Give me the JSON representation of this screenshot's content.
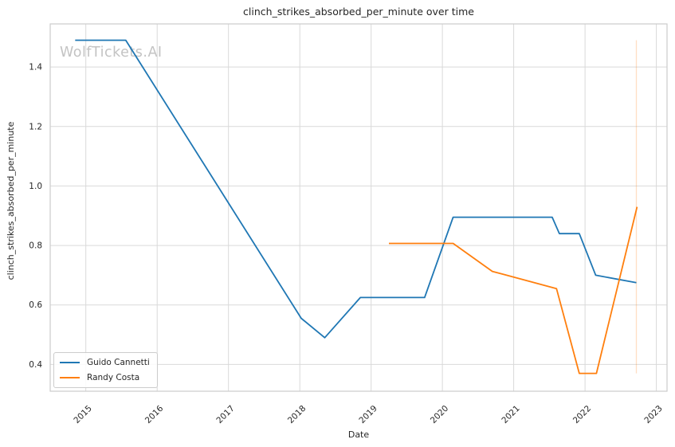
{
  "figure": {
    "title": "clinch_strikes_absorbed_per_minute over time",
    "watermark": "WolfTickets.AI",
    "xlabel": "Date",
    "ylabel": "clinch_strikes_absorbed_per_minute"
  },
  "legend": {
    "items": [
      {
        "label": "Guido Cannetti",
        "color": "#1f77b4"
      },
      {
        "label": "Randy Costa",
        "color": "#ff7f0e"
      }
    ]
  },
  "chart_data": {
    "type": "line",
    "title": "clinch_strikes_absorbed_per_minute over time",
    "xlabel": "Date",
    "ylabel": "clinch_strikes_absorbed_per_minute",
    "xlim": [
      2014.5,
      2023.15
    ],
    "ylim": [
      0.31,
      1.545
    ],
    "xticks": [
      2015,
      2016,
      2017,
      2018,
      2019,
      2020,
      2021,
      2022,
      2023
    ],
    "xtick_labels": [
      "2015",
      "2016",
      "2017",
      "2018",
      "2019",
      "2020",
      "2021",
      "2022",
      "2023"
    ],
    "yticks": [
      0.4,
      0.6,
      0.8,
      1.0,
      1.2,
      1.4
    ],
    "ytick_labels": [
      "0.4",
      "0.6",
      "0.8",
      "1.0",
      "1.2",
      "1.4"
    ],
    "grid": true,
    "legend_position": "lower-left",
    "series": [
      {
        "name": "Guido Cannetti",
        "color": "#1f77b4",
        "points": [
          [
            2014.85,
            1.49
          ],
          [
            2015.56,
            1.49
          ],
          [
            2018.02,
            0.555
          ],
          [
            2018.35,
            0.49
          ],
          [
            2018.85,
            0.625
          ],
          [
            2019.75,
            0.625
          ],
          [
            2020.15,
            0.895
          ],
          [
            2021.54,
            0.895
          ],
          [
            2021.64,
            0.84
          ],
          [
            2021.92,
            0.84
          ],
          [
            2022.15,
            0.7
          ],
          [
            2022.72,
            0.675
          ]
        ]
      },
      {
        "name": "Randy Costa",
        "color": "#ff7f0e",
        "points": [
          [
            2019.25,
            0.807
          ],
          [
            2020.15,
            0.807
          ],
          [
            2020.7,
            0.713
          ],
          [
            2021.6,
            0.655
          ],
          [
            2021.92,
            0.37
          ],
          [
            2022.16,
            0.37
          ],
          [
            2022.73,
            0.93
          ]
        ]
      }
    ],
    "annotations": [
      {
        "type": "vline",
        "x": 2022.72,
        "y1": 0.37,
        "y2": 1.49,
        "color": "#ff7f0e",
        "opacity": 0.25
      }
    ],
    "colors": {
      "grid": "#d9d9d9",
      "spine": "#cccccc",
      "text": "#262626",
      "watermark": "#c3c3c3",
      "background": "#ffffff"
    }
  }
}
